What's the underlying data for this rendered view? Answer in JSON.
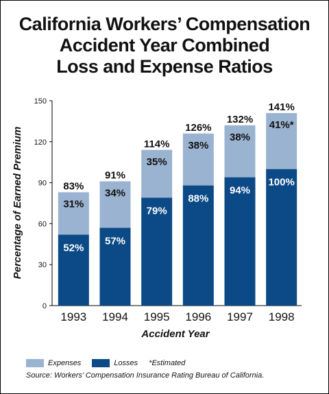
{
  "title_lines": [
    "California Workers’ Compensation",
    "Accident Year Combined",
    "Loss and Expense Ratios"
  ],
  "chart_data": {
    "type": "bar",
    "stacked": true,
    "categories": [
      "1993",
      "1994",
      "1995",
      "1996",
      "1997",
      "1998"
    ],
    "series": [
      {
        "name": "Losses",
        "values": [
          52,
          57,
          79,
          88,
          94,
          100
        ],
        "labels": [
          "52%",
          "57%",
          "79%",
          "88%",
          "94%",
          "100%"
        ],
        "color": "#0b4a86"
      },
      {
        "name": "Expenses",
        "values": [
          31,
          34,
          35,
          38,
          38,
          41
        ],
        "labels": [
          "31%",
          "34%",
          "35%",
          "38%",
          "38%",
          "41%*"
        ],
        "color": "#9ab3d0"
      }
    ],
    "totals": [
      "83%",
      "91%",
      "114%",
      "126%",
      "132%",
      "141%"
    ],
    "xlabel": "Accident Year",
    "ylabel": "Percentage of Earned Premium",
    "ylim": [
      0,
      150
    ],
    "yticks": [
      "0",
      "30",
      "60",
      "90",
      "120",
      "150"
    ],
    "grid": false,
    "legend_position": "bottom-left"
  },
  "legend": {
    "expenses": "Expenses",
    "losses": "Losses",
    "note": "*Estimated",
    "expenses_color": "#9ab3d0",
    "losses_color": "#0b4a86"
  },
  "source": "Source: Workers’ Compensation Insurance Rating Bureau of California."
}
